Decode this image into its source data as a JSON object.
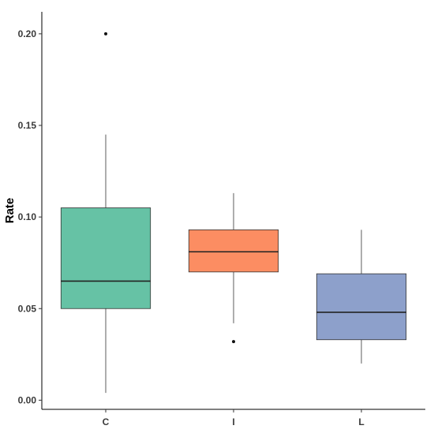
{
  "chart_data": {
    "type": "box",
    "xlabel": "",
    "ylabel": "Rate",
    "ylim": [
      -0.005,
      0.212
    ],
    "yticks": [
      "0.00",
      "0.05",
      "0.10",
      "0.15",
      "0.20"
    ],
    "categories": [
      "C",
      "I",
      "L"
    ],
    "boxes": [
      {
        "category": "C",
        "lower_whisker": 0.004,
        "q1": 0.05,
        "median": 0.065,
        "q3": 0.105,
        "upper_whisker": 0.145,
        "outliers": [
          0.2
        ],
        "color": "#66c2a5"
      },
      {
        "category": "I",
        "lower_whisker": 0.042,
        "q1": 0.07,
        "median": 0.081,
        "q3": 0.093,
        "upper_whisker": 0.113,
        "outliers": [
          0.032
        ],
        "color": "#fc8d62"
      },
      {
        "category": "L",
        "lower_whisker": 0.02,
        "q1": 0.033,
        "median": 0.048,
        "q3": 0.069,
        "upper_whisker": 0.093,
        "outliers": [],
        "color": "#8da0cb"
      }
    ],
    "grid": false,
    "legend": "none"
  }
}
